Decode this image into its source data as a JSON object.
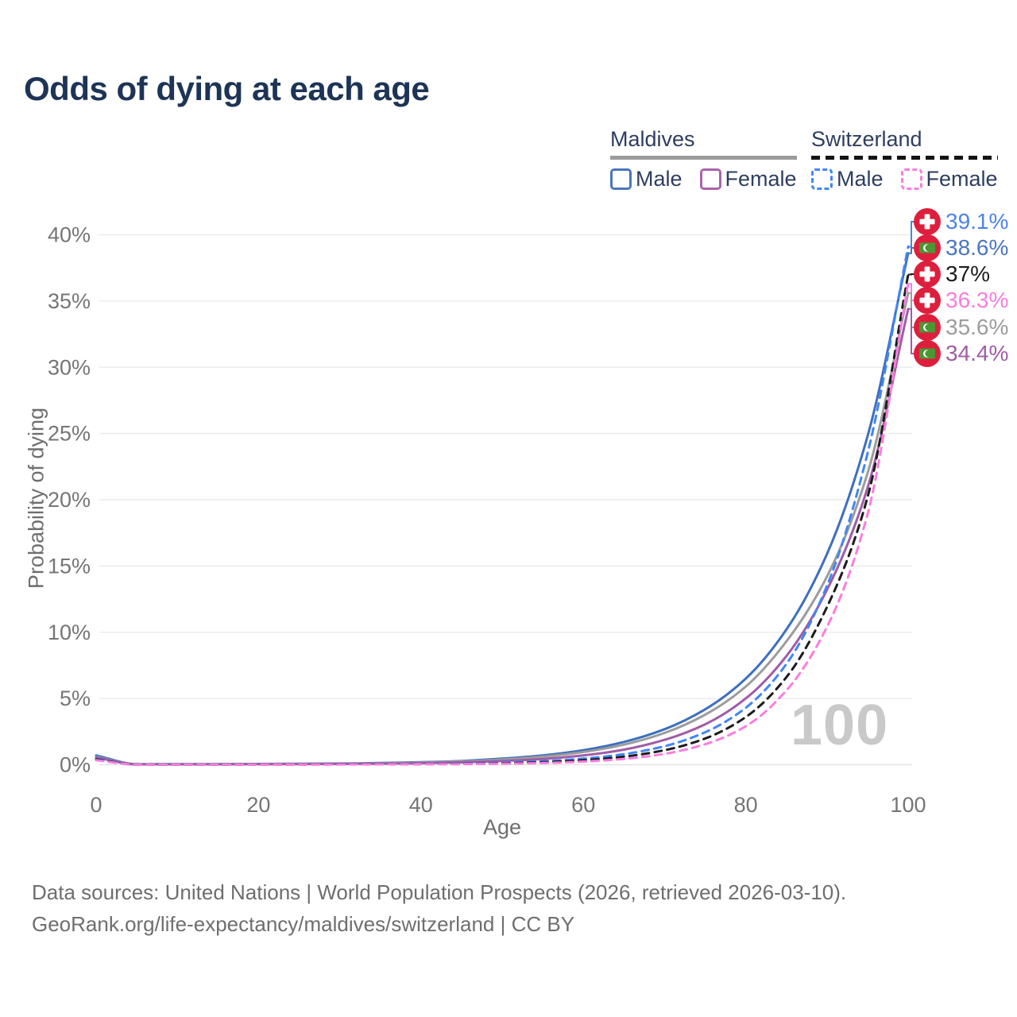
{
  "page": {
    "title": "Odds of dying at each age",
    "watermark_age": "100",
    "source_line1": "Data sources: United Nations | World Population Prospects (2026, retrieved 2026-03-10).",
    "source_line2": "GeoRank.org/life-expectancy/maldives/switzerland | CC BY"
  },
  "legend": {
    "groups": [
      {
        "label": "Maldives",
        "line_style": "solid",
        "items": [
          {
            "label": "Male",
            "color": "#4a76bd"
          },
          {
            "label": "Female",
            "color": "#ab62ab"
          }
        ]
      },
      {
        "label": "Switzerland",
        "line_style": "dashed",
        "items": [
          {
            "label": "Male",
            "color": "#4286f4"
          },
          {
            "label": "Female",
            "color": "#fb7ce0"
          }
        ]
      }
    ]
  },
  "axes": {
    "x_label": "Age",
    "y_label": "Probability of dying",
    "x_ticks": [
      0,
      20,
      40,
      60,
      80,
      100
    ],
    "y_ticks_percent": [
      0,
      5,
      10,
      15,
      20,
      25,
      30,
      35,
      40
    ]
  },
  "chart_data": {
    "type": "line",
    "title": "Odds of dying at each age",
    "xlabel": "Age",
    "ylabel": "Probability of dying",
    "xlim": [
      0,
      100
    ],
    "ylim_percent": [
      0,
      40
    ],
    "grid": "horizontal",
    "legend_position": "top-right",
    "current_age_indicator": "100",
    "x": [
      0,
      5,
      10,
      15,
      20,
      25,
      30,
      35,
      40,
      45,
      50,
      55,
      60,
      65,
      70,
      75,
      80,
      85,
      90,
      95,
      100
    ],
    "series": [
      {
        "name": "Maldives Male",
        "country": "Maldives",
        "sex": "male",
        "line": "solid",
        "color": "#3d6fbe",
        "end_value_percent": 38.6,
        "values_percent": [
          0.7,
          0.04,
          0.04,
          0.05,
          0.06,
          0.07,
          0.09,
          0.13,
          0.19,
          0.29,
          0.46,
          0.71,
          1.1,
          1.72,
          2.68,
          4.18,
          6.5,
          10.2,
          15.9,
          24.8,
          38.6
        ]
      },
      {
        "name": "Maldives All",
        "country": "Maldives",
        "sex": "all",
        "line": "solid",
        "color": "#9c9c9c",
        "end_value_percent": 35.6,
        "values_percent": [
          0.6,
          0.03,
          0.03,
          0.04,
          0.05,
          0.06,
          0.08,
          0.11,
          0.16,
          0.25,
          0.39,
          0.61,
          0.96,
          1.52,
          2.4,
          3.78,
          5.9,
          9.3,
          14.2,
          22.0,
          35.6
        ]
      },
      {
        "name": "Maldives Female",
        "country": "Maldives",
        "sex": "female",
        "line": "solid",
        "color": "#a05ca6",
        "end_value_percent": 34.4,
        "values_percent": [
          0.55,
          0.03,
          0.03,
          0.03,
          0.04,
          0.05,
          0.06,
          0.08,
          0.12,
          0.18,
          0.28,
          0.44,
          0.7,
          1.14,
          1.88,
          3.05,
          5.0,
          8.2,
          13.2,
          20.9,
          34.4
        ]
      },
      {
        "name": "Switzerland Male",
        "country": "Switzerland",
        "sex": "male",
        "line": "dashed",
        "color": "#4286f4",
        "end_value_percent": 39.1,
        "values_percent": [
          0.45,
          0.02,
          0.02,
          0.02,
          0.03,
          0.03,
          0.04,
          0.05,
          0.07,
          0.1,
          0.16,
          0.27,
          0.46,
          0.8,
          1.4,
          2.45,
          4.3,
          7.6,
          13.5,
          23.5,
          39.1
        ]
      },
      {
        "name": "Switzerland All",
        "country": "Switzerland",
        "sex": "all",
        "line": "dashed",
        "color": "#1c1c1c",
        "end_value_percent": 37.0,
        "values_percent": [
          0.4,
          0.01,
          0.01,
          0.02,
          0.02,
          0.02,
          0.03,
          0.04,
          0.05,
          0.07,
          0.11,
          0.19,
          0.34,
          0.61,
          1.1,
          1.98,
          3.6,
          6.6,
          11.9,
          20.2,
          37.0
        ]
      },
      {
        "name": "Switzerland Female",
        "country": "Switzerland",
        "sex": "female",
        "line": "dashed",
        "color": "#fb7ce0",
        "end_value_percent": 36.3,
        "values_percent": [
          0.35,
          0.01,
          0.01,
          0.01,
          0.01,
          0.02,
          0.02,
          0.03,
          0.04,
          0.05,
          0.08,
          0.13,
          0.24,
          0.44,
          0.82,
          1.55,
          2.9,
          5.6,
          10.4,
          18.9,
          36.3
        ]
      }
    ],
    "end_labels": [
      {
        "text": "39.1%",
        "series": "Switzerland Male",
        "flag": "switzerland",
        "color": "#4c84e6"
      },
      {
        "text": "38.6%",
        "series": "Maldives Male",
        "flag": "maldives",
        "color": "#4a76bd"
      },
      {
        "text": "37%",
        "series": "Switzerland All",
        "flag": "switzerland",
        "color": "#1c1c1c"
      },
      {
        "text": "36.3%",
        "series": "Switzerland Female",
        "flag": "switzerland",
        "color": "#fb7ce0"
      },
      {
        "text": "35.6%",
        "series": "Maldives All",
        "flag": "maldives",
        "color": "#9c9c9c"
      },
      {
        "text": "34.4%",
        "series": "Maldives Female",
        "flag": "maldives",
        "color": "#a05ca6"
      }
    ]
  }
}
